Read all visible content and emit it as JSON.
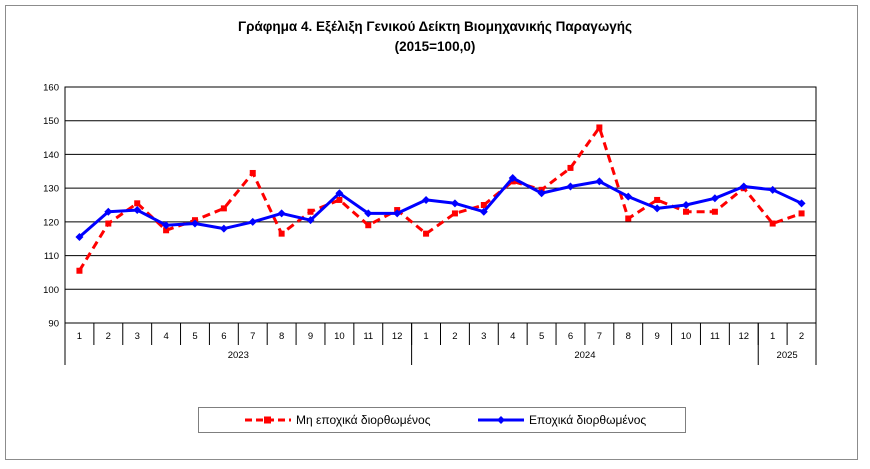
{
  "chart_data": {
    "type": "line",
    "title": "Γράφημα 4. Εξέλιξη Γενικού Δείκτη Βιομηχανικής Παραγωγής",
    "subtitle": "(2015=100,0)",
    "xlabel": "",
    "ylabel": "",
    "ylim": [
      90,
      160
    ],
    "yticks": [
      "90",
      "100",
      "110",
      "120",
      "130",
      "140",
      "150",
      "160"
    ],
    "grid": true,
    "legend_position": "bottom",
    "categories": [
      "1",
      "2",
      "3",
      "4",
      "5",
      "6",
      "7",
      "8",
      "9",
      "10",
      "11",
      "12",
      "1",
      "2",
      "3",
      "4",
      "5",
      "6",
      "7",
      "8",
      "9",
      "10",
      "11",
      "12",
      "1",
      "2"
    ],
    "years": [
      {
        "label": "2023",
        "months": 12
      },
      {
        "label": "2024",
        "months": 12
      },
      {
        "label": "2025",
        "months": 2
      }
    ],
    "series": [
      {
        "name": "Μη εποχικά διορθωμένος",
        "color": "#ff0000",
        "style": "dashed",
        "marker": "square",
        "values": [
          105.5,
          119.5,
          125.5,
          117.5,
          120.5,
          124.0,
          134.5,
          116.5,
          123.0,
          126.5,
          119.0,
          123.5,
          116.5,
          122.5,
          125.0,
          132.0,
          129.5,
          136.0,
          148.0,
          121.0,
          126.5,
          123.0,
          123.0,
          130.0,
          119.5,
          122.5
        ]
      },
      {
        "name": "Εποχικά διορθωμένος",
        "color": "#0000ff",
        "style": "solid",
        "marker": "diamond",
        "values": [
          115.5,
          123.0,
          123.5,
          119.0,
          119.5,
          118.0,
          120.0,
          122.5,
          120.5,
          128.5,
          122.5,
          122.5,
          126.5,
          125.5,
          123.0,
          133.0,
          128.5,
          130.5,
          132.0,
          127.5,
          124.0,
          125.0,
          127.0,
          130.5,
          129.5,
          125.5
        ]
      }
    ]
  }
}
